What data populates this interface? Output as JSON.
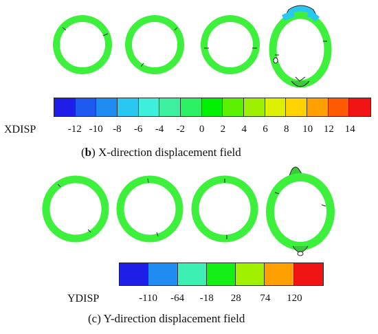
{
  "panel_b": {
    "caption_letter": "b",
    "caption_text": "X-direction displacement field",
    "legend_label": "XDISP",
    "colorbar_colors": [
      "#1e1ee6",
      "#1e5af0",
      "#1e8cf0",
      "#28c8f0",
      "#3cf0dc",
      "#3cf0a0",
      "#2cf064",
      "#00f000",
      "#5af000",
      "#9cf000",
      "#dcf000",
      "#ffd200",
      "#ffa000",
      "#ff5a00",
      "#f01414"
    ],
    "tick_labels": [
      "-12",
      "-10",
      "-8",
      "-6",
      "-4",
      "-2",
      "0",
      "2",
      "4",
      "6",
      "8",
      "10",
      "12",
      "14"
    ]
  },
  "panel_c": {
    "caption_letter": "c",
    "caption_text": "Y-direction displacement field",
    "legend_label": "YDISP",
    "colorbar_colors": [
      "#1e1ee6",
      "#1e8cf0",
      "#3cf0b4",
      "#14f014",
      "#a0f000",
      "#ffa000",
      "#f01414"
    ],
    "tick_labels": [
      "-110",
      "-64",
      "-18",
      "28",
      "74",
      "120"
    ]
  },
  "ring_color": "#3cf03c",
  "ring_line_color": "#222222",
  "deformed_top_color": "#28c8f0"
}
